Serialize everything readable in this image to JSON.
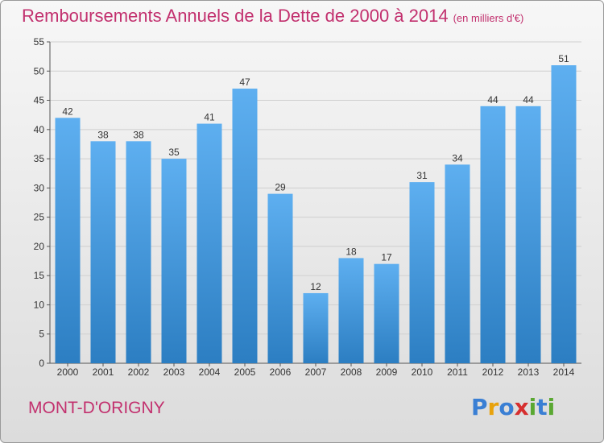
{
  "header": {
    "title": "Remboursements Annuels de la Dette de 2000 à 2014",
    "unit": "(en milliers d'€)"
  },
  "footer": {
    "city": "MONT-D'ORIGNY",
    "logo": [
      "P",
      "r",
      "o",
      "x",
      "i",
      "t",
      "i"
    ],
    "logo_colors": [
      "#3a7fd4",
      "#e8a20c",
      "#3a7fd4",
      "#d62f2f",
      "#5aa832",
      "#3a7fd4",
      "#5aa832"
    ]
  },
  "colors": {
    "bar_light": "#5eaff0",
    "bar_dark": "#2c7ec2",
    "title": "#c2306e"
  },
  "chart_data": {
    "type": "bar",
    "title": "Remboursements Annuels de la Dette de 2000 à 2014",
    "xlabel": "",
    "ylabel": "",
    "categories": [
      "2000",
      "2001",
      "2002",
      "2003",
      "2004",
      "2005",
      "2006",
      "2007",
      "2008",
      "2009",
      "2010",
      "2011",
      "2012",
      "2013",
      "2014"
    ],
    "values": [
      42,
      38,
      38,
      35,
      41,
      47,
      29,
      12,
      18,
      17,
      31,
      34,
      44,
      44,
      51
    ],
    "data_labels": [
      "42",
      "38",
      "38",
      "35",
      "41",
      "47",
      "29",
      "12",
      "18",
      "17",
      "31",
      "34",
      "44",
      "44",
      "51"
    ],
    "ylim": [
      0,
      55
    ],
    "yticks": [
      0,
      5,
      10,
      15,
      20,
      25,
      30,
      35,
      40,
      45,
      50,
      55
    ],
    "grid": "horizontal"
  }
}
